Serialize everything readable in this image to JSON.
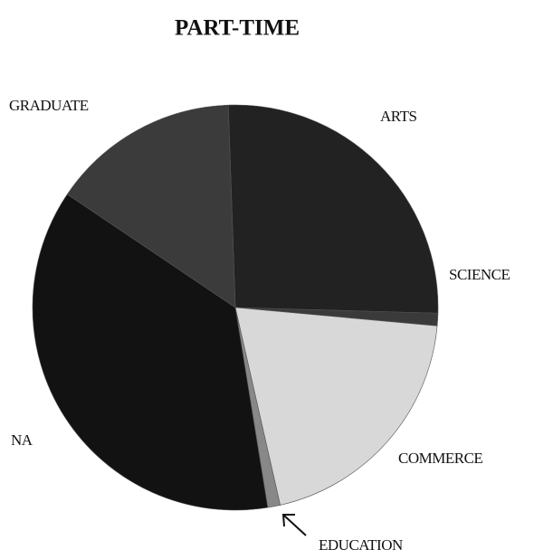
{
  "chart_data": {
    "type": "pie",
    "title": "PART-TIME",
    "categories": [
      "ARTS",
      "SCIENCE",
      "COMMERCE",
      "EDUCATION",
      "NA",
      "GRADUATE"
    ],
    "values": [
      26,
      1,
      20,
      1,
      37,
      15
    ],
    "colors": [
      "#222222",
      "#3a3a3a",
      "#d8d8d8",
      "#888888",
      "#121212",
      "#3b3b3b"
    ]
  }
}
